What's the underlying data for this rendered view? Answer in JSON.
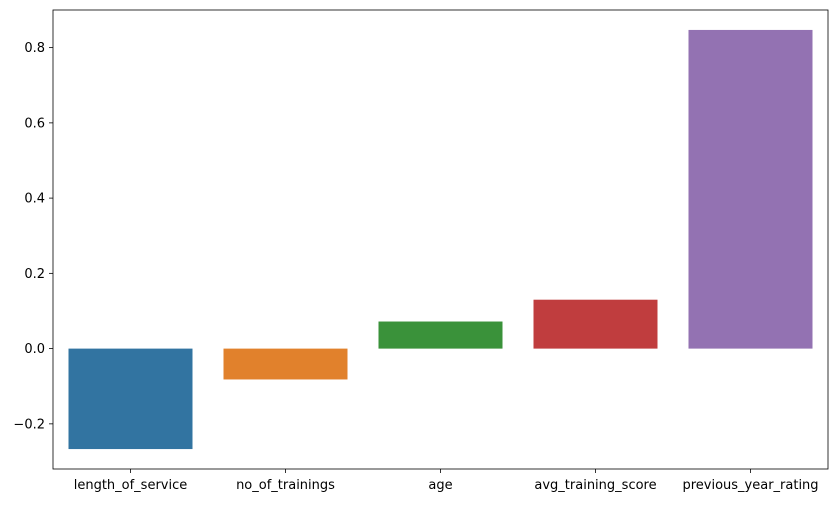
{
  "chart_data": {
    "type": "bar",
    "title": "",
    "xlabel": "",
    "ylabel": "",
    "categories": [
      "length_of_service",
      "no_of_trainings",
      "age",
      "avg_training_score",
      "previous_year_rating"
    ],
    "values": [
      -0.267,
      -0.082,
      0.072,
      0.13,
      0.847
    ],
    "colors": [
      "#3274a1",
      "#e1812c",
      "#3a923a",
      "#c03d3e",
      "#9372b2"
    ],
    "ylim": [
      -0.32,
      0.9
    ],
    "yticks": [
      -0.2,
      0.0,
      0.2,
      0.4,
      0.6,
      0.8
    ],
    "ytick_labels": [
      "−0.2",
      "0.0",
      "0.2",
      "0.4",
      "0.6",
      "0.8"
    ],
    "grid": false,
    "legend": "none"
  }
}
